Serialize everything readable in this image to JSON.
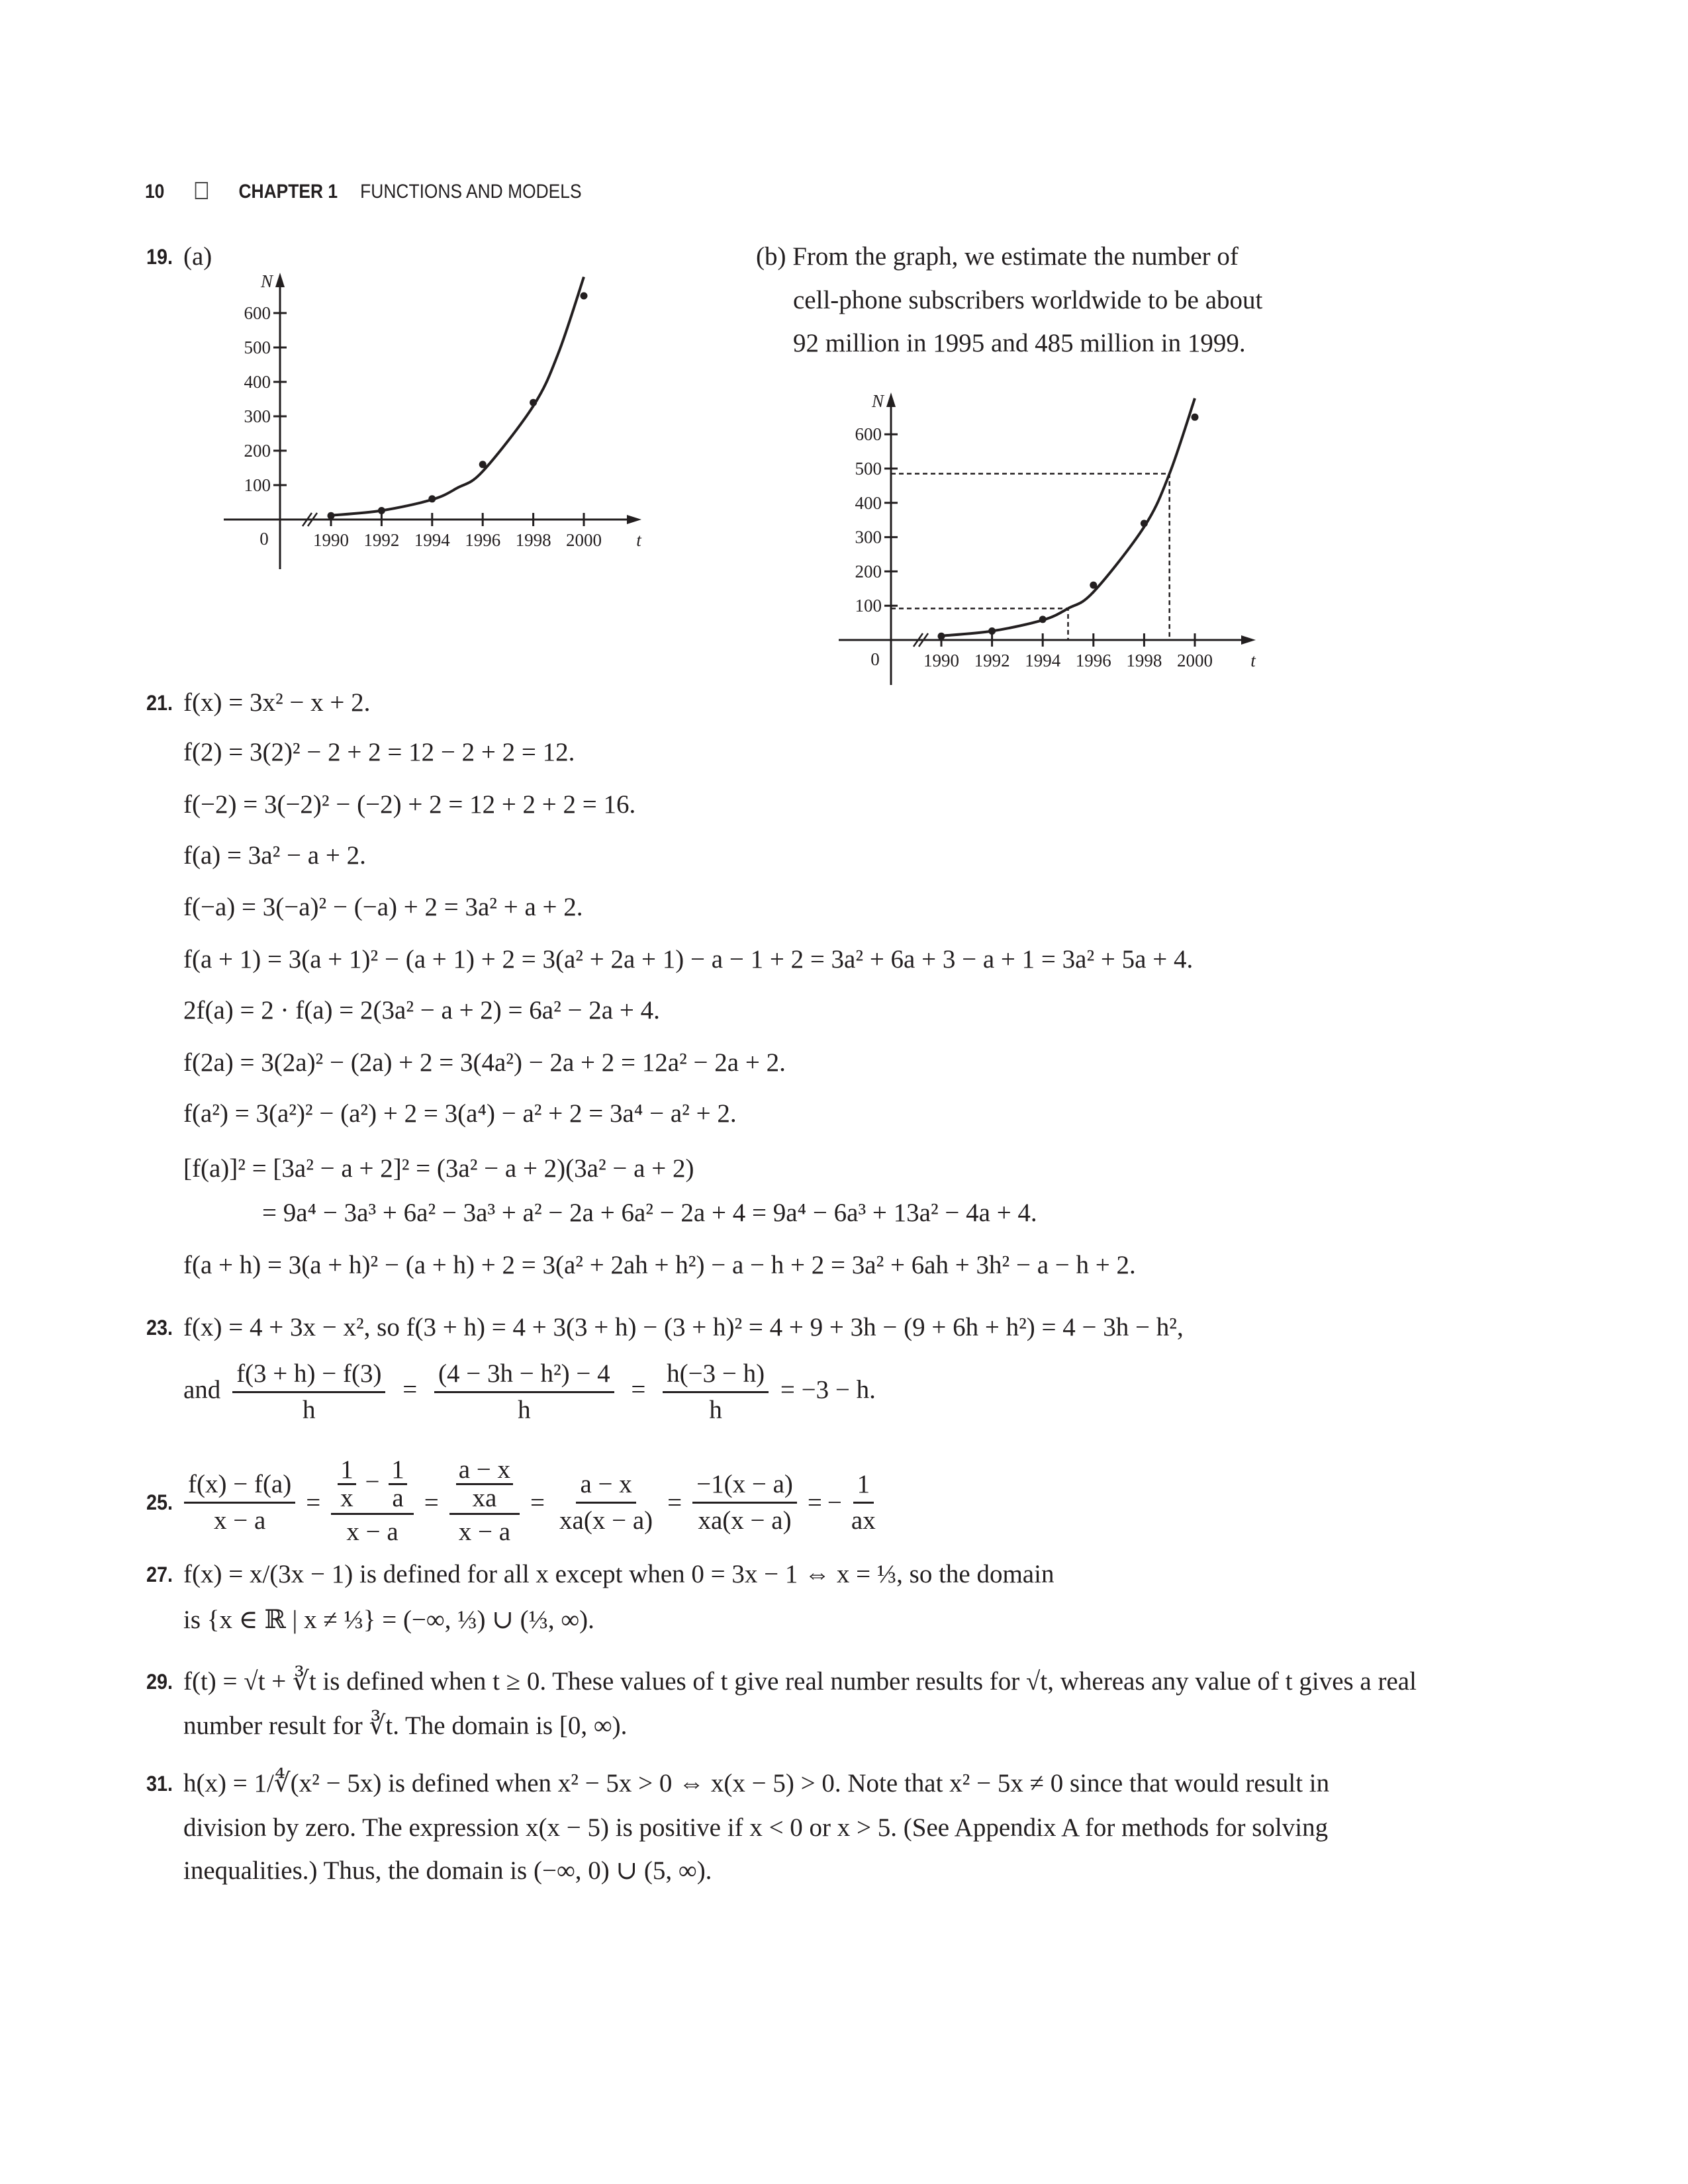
{
  "header": {
    "page_number": "10",
    "chapter": "CHAPTER 1",
    "title": "FUNCTIONS AND MODELS"
  },
  "p19": {
    "number": "19.",
    "part_a": "(a)",
    "part_b_lines": [
      "(b) From the graph, we estimate the number of",
      "cell-phone subscribers worldwide to be about",
      "92 million in 1995 and 485 million in 1999."
    ]
  },
  "chart_data": [
    {
      "type": "scatter",
      "panel": "(a)",
      "x_label": "t",
      "y_label": "N",
      "origin_label": "0",
      "x_ticks": [
        1990,
        1992,
        1994,
        1996,
        1998,
        2000
      ],
      "y_ticks": [
        100,
        200,
        300,
        400,
        500,
        600
      ],
      "axis_break": true,
      "grid": false,
      "points": {
        "x": [
          1990,
          1992,
          1994,
          1996,
          1998,
          2000
        ],
        "y": [
          11,
          26,
          60,
          160,
          340,
          650
        ]
      },
      "fitted_curve": {
        "x": [
          1990,
          1992,
          1994,
          1995,
          1996,
          1998,
          1999,
          2000
        ],
        "y": [
          12,
          26,
          58,
          92,
          140,
          330,
          485,
          705
        ]
      }
    },
    {
      "type": "scatter",
      "panel": "(b)",
      "x_label": "t",
      "y_label": "N",
      "origin_label": "0",
      "x_ticks": [
        1990,
        1992,
        1994,
        1996,
        1998,
        2000
      ],
      "y_ticks": [
        100,
        200,
        300,
        400,
        500,
        600
      ],
      "axis_break": true,
      "grid": false,
      "points": {
        "x": [
          1990,
          1992,
          1994,
          1996,
          1998,
          2000
        ],
        "y": [
          11,
          26,
          60,
          160,
          340,
          650
        ]
      },
      "fitted_curve": {
        "x": [
          1990,
          1992,
          1994,
          1995,
          1996,
          1998,
          1999,
          2000
        ],
        "y": [
          12,
          26,
          58,
          92,
          140,
          330,
          485,
          705
        ]
      },
      "estimates": [
        {
          "x": 1995,
          "y": 92
        },
        {
          "x": 1999,
          "y": 485
        }
      ]
    }
  ],
  "p21": {
    "number": "21.",
    "lines": [
      "f(x) = 3x² − x + 2.",
      "f(2) = 3(2)² − 2 + 2 = 12 − 2 + 2 = 12.",
      "f(−2) = 3(−2)² − (−2) + 2 = 12 + 2 + 2 = 16.",
      "f(a) = 3a² − a + 2.",
      "f(−a) = 3(−a)² − (−a) + 2 = 3a² + a + 2.",
      "f(a + 1) = 3(a + 1)² − (a + 1) + 2 = 3(a² + 2a + 1) − a − 1 + 2 = 3a² + 6a + 3 − a + 1 = 3a² + 5a + 4.",
      "2f(a) = 2 · f(a) = 2(3a² − a + 2) = 6a² − 2a + 4.",
      "f(2a) = 3(2a)² − (2a) + 2 = 3(4a²) − 2a + 2 = 12a² − 2a + 2.",
      "f(a²) = 3(a²)² − (a²) + 2 = 3(a⁴) − a² + 2 = 3a⁴ − a² + 2.",
      "[f(a)]² = [3a² − a + 2]² = (3a² − a + 2)(3a² − a + 2)",
      "= 9a⁴ − 3a³ + 6a² − 3a³ + a² − 2a + 6a² − 2a + 4 = 9a⁴ − 6a³ + 13a² − 4a + 4.",
      "f(a + h) = 3(a + h)² − (a + h) + 2 = 3(a² + 2ah + h²) − a − h + 2 = 3a² + 6ah + 3h² − a − h + 2."
    ]
  },
  "p23": {
    "number": "23.",
    "line1": "f(x) = 4 + 3x − x², so f(3 + h) = 4 + 3(3 + h) − (3 + h)² = 4 + 9 + 3h − (9 + 6h + h²) = 4 − 3h − h²,",
    "and": "and",
    "eq": "=",
    "fractions": [
      {
        "num": "f(3 + h) − f(3)",
        "den": "h"
      },
      {
        "num": "(4 − 3h − h²) − 4",
        "den": "h"
      },
      {
        "num": "h(−3 − h)",
        "den": "h"
      }
    ],
    "result": "= −3 − h."
  },
  "p25": {
    "number": "25.",
    "eq": "=",
    "minus": "−",
    "f1": {
      "num": "f(x) − f(a)",
      "den": "x − a"
    },
    "f2": {
      "num": {
        "a": {
          "num": "1",
          "den": "x"
        },
        "op": "−",
        "b": {
          "num": "1",
          "den": "a"
        }
      },
      "den": "x − a"
    },
    "f3": {
      "num": {
        "num": "a − x",
        "den": "xa"
      },
      "den": "x − a"
    },
    "f4": {
      "num": "a − x",
      "den": "xa(x − a)"
    },
    "f5": {
      "num": "−1(x − a)",
      "den": "xa(x − a)"
    },
    "f6": {
      "num": "1",
      "den": "ax"
    }
  },
  "p27": {
    "number": "27.",
    "line1": "f(x) = x/(3x − 1) is defined for all x except when 0 = 3x − 1   ⇔   x = ⅓, so the domain",
    "line2": "is {x ∈ ℝ | x ≠ ⅓} = (−∞, ⅓) ∪ (⅓, ∞)."
  },
  "p29": {
    "number": "29.",
    "lines": [
      "f(t) = √t + ∛t is defined when t ≥ 0. These values of t give real number results for √t, whereas any value of t gives a real",
      "number result for ∛t. The domain is [0, ∞)."
    ]
  },
  "p31": {
    "number": "31.",
    "lines": [
      "h(x) = 1/∜(x² − 5x) is defined when x² − 5x > 0   ⇔   x(x − 5) > 0. Note that x² − 5x ≠ 0 since that would result in",
      "division by zero. The expression x(x − 5) is positive if x < 0 or x > 5. (See Appendix A for methods for solving",
      "inequalities.) Thus, the domain is (−∞, 0) ∪ (5, ∞)."
    ]
  }
}
